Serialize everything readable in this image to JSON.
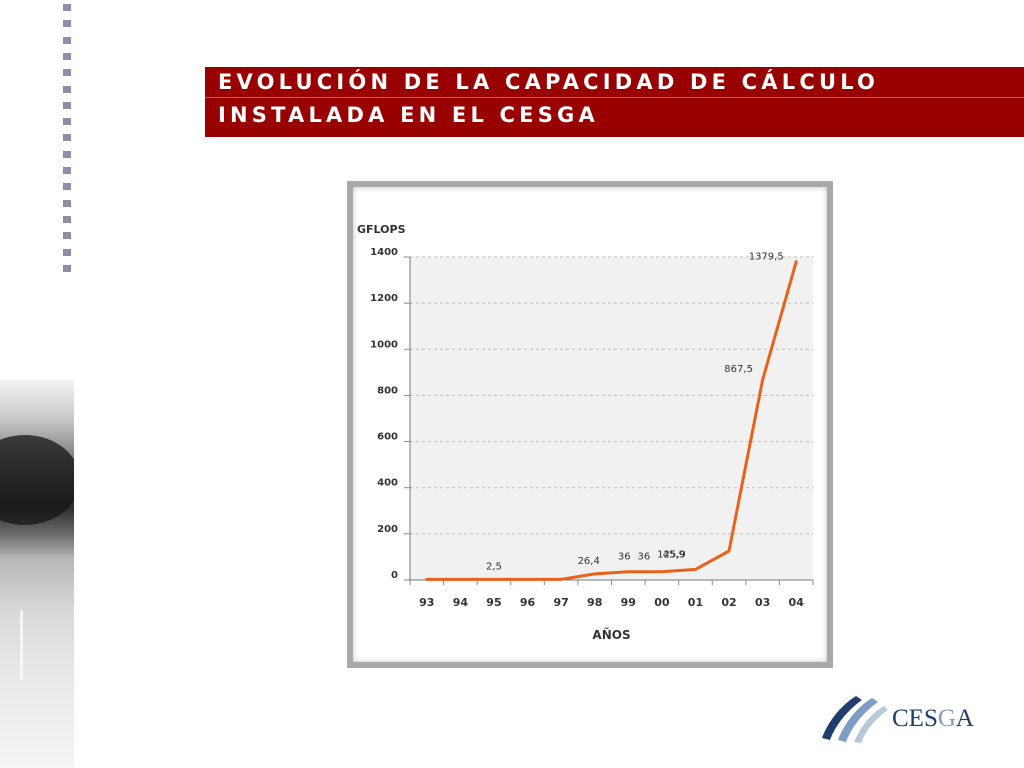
{
  "banner": {
    "line1": "EVOLUCIÓN DE LA CAPACIDAD DE CÁLCULO",
    "line2": "INSTALADA EN EL CESGA",
    "color": "#990000"
  },
  "logo": {
    "text": "CESGA",
    "icon": "cesga-stripes-logo"
  },
  "chart_data": {
    "type": "line",
    "title": "",
    "ylabel": "GFLOPS",
    "xlabel": "AÑOS",
    "categories": [
      "93",
      "94",
      "95",
      "96",
      "97",
      "98",
      "99",
      "00",
      "01",
      "02",
      "03",
      "04"
    ],
    "values": [
      2.5,
      2.5,
      2.5,
      2.5,
      2.5,
      26.4,
      36,
      36,
      45.9,
      125.9,
      867.5,
      1379.5
    ],
    "labels": [
      {
        "category": "95",
        "text": "2,5"
      },
      {
        "category": "98",
        "text": "26,4"
      },
      {
        "category": "99",
        "text": "36"
      },
      {
        "category": "00",
        "text": "36"
      },
      {
        "category": "00",
        "text": "45,9"
      },
      {
        "category": "01",
        "text": "125,9"
      },
      {
        "category": "03",
        "text": "867,5"
      },
      {
        "category": "04",
        "text": "1379,5"
      }
    ],
    "yticks": [
      "0",
      "200",
      "400",
      "600",
      "800",
      "1000",
      "1200",
      "1400"
    ],
    "ylim": [
      0,
      1400
    ],
    "grid": true,
    "line_color": "#e8621b"
  }
}
